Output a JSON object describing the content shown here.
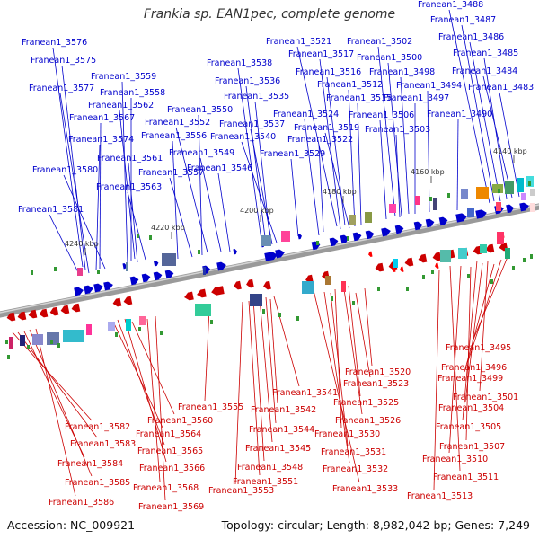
{
  "title": "Frankia sp. EAN1pec, complete genome",
  "accession": "Accession: NC_009921",
  "topology": "Topology: circular; Length: 8,982,042 bp; Genes: 7,249",
  "colors": {
    "top_strand": "#0000cc",
    "bottom_strand": "#cc0000"
  },
  "positions": [
    "4240 kbp",
    "4220 kbp",
    "4200 kbp",
    "4180 kbp",
    "4160 kbp",
    "4140 kbp"
  ],
  "top_labels": [
    "Franean1_3576",
    "Franean1_3575",
    "Franean1_3577",
    "Franean1_3559",
    "Franean1_3558",
    "Franean1_3562",
    "Franean1_3567",
    "Franean1_3574",
    "Franean1_3561",
    "Franean1_3580",
    "Franean1_3563",
    "Franean1_3581",
    "Franean1_3550",
    "Franean1_3552",
    "Franean1_3556",
    "Franean1_3549",
    "Franean1_3557",
    "Franean1_3546",
    "Franean1_3538",
    "Franean1_3536",
    "Franean1_3535",
    "Franean1_3537",
    "Franean1_3540",
    "Franean1_3529",
    "Franean1_3521",
    "Franean1_3517",
    "Franean1_3516",
    "Franean1_3512",
    "Franean1_3515",
    "Franean1_3524",
    "Franean1_3519",
    "Franean1_3522",
    "Franean1_3502",
    "Franean1_3500",
    "Franean1_3498",
    "Franean1_3494",
    "Franean1_3497",
    "Franean1_3506",
    "Franean1_3503",
    "Franean1_3488",
    "Franean1_3487",
    "Franean1_3486",
    "Franean1_3485",
    "Franean1_3484",
    "Franean1_3483",
    "Franean1_3490"
  ],
  "bottom_labels": [
    "Franean1_3582",
    "Franean1_3583",
    "Franean1_3584",
    "Franean1_3585",
    "Franean1_3586",
    "Franean1_3560",
    "Franean1_3564",
    "Franean1_3565",
    "Franean1_3566",
    "Franean1_3568",
    "Franean1_3569",
    "Franean1_3555",
    "Franean1_3541",
    "Franean1_3542",
    "Franean1_3544",
    "Franean1_3545",
    "Franean1_3548",
    "Franean1_3551",
    "Franean1_3553",
    "Franean1_3520",
    "Franean1_3523",
    "Franean1_3525",
    "Franean1_3526",
    "Franean1_3530",
    "Franean1_3531",
    "Franean1_3532",
    "Franean1_3533",
    "Franean1_3495",
    "Franean1_3496",
    "Franean1_3499",
    "Franean1_3501",
    "Franean1_3504",
    "Franean1_3505",
    "Franean1_3507",
    "Franean1_3510",
    "Franean1_3511",
    "Franean1_3513"
  ]
}
